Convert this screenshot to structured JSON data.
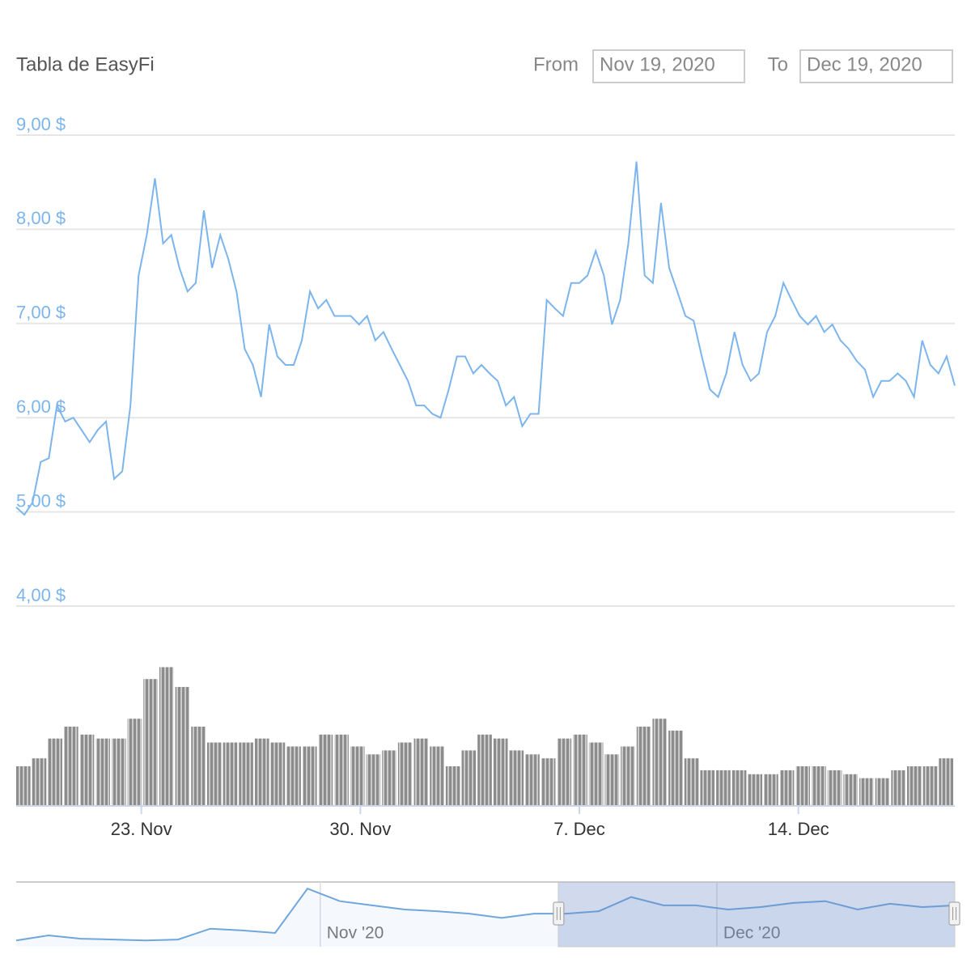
{
  "chart_data": {
    "type": "line",
    "title": "Tabla de EasyFi",
    "range_selector": {
      "from_label": "From",
      "from": "Nov 19, 2020",
      "to_label": "To",
      "to": "Dec 19, 2020"
    },
    "xlim": [
      "2020-11-19",
      "2020-12-19"
    ],
    "xticks": [
      {
        "value": "2020-11-23",
        "label": "23. Nov"
      },
      {
        "value": "2020-11-30",
        "label": "30. Nov"
      },
      {
        "value": "2020-12-07",
        "label": "7. Dec"
      },
      {
        "value": "2020-12-14",
        "label": "14. Dec"
      }
    ],
    "ylim": [
      4,
      9
    ],
    "yticks": [
      {
        "value": 9,
        "label": "9,00 $"
      },
      {
        "value": 8,
        "label": "8,00 $"
      },
      {
        "value": 7,
        "label": "7,00 $"
      },
      {
        "value": 6,
        "label": "6,00 $"
      },
      {
        "value": 5,
        "label": "5,00 $"
      },
      {
        "value": 4,
        "label": "4,00 $"
      }
    ],
    "grid": true,
    "series": [
      {
        "color": "#7cb5ec",
        "values": [
          5.05,
          4.97,
          5.1,
          5.53,
          5.57,
          6.13,
          5.96,
          6.0,
          5.87,
          5.74,
          5.87,
          5.96,
          5.35,
          5.43,
          6.13,
          7.51,
          7.94,
          8.54,
          7.85,
          7.94,
          7.59,
          7.34,
          7.43,
          8.2,
          7.59,
          7.94,
          7.68,
          7.34,
          6.73,
          6.56,
          6.22,
          6.99,
          6.65,
          6.56,
          6.56,
          6.82,
          7.34,
          7.16,
          7.25,
          7.08,
          7.08,
          7.08,
          6.99,
          7.08,
          6.82,
          6.91,
          6.73,
          6.56,
          6.39,
          6.13,
          6.13,
          6.04,
          6.0,
          6.3,
          6.65,
          6.65,
          6.47,
          6.56,
          6.47,
          6.39,
          6.13,
          6.22,
          5.91,
          6.04,
          6.04,
          7.25,
          7.16,
          7.08,
          7.43,
          7.43,
          7.51,
          7.77,
          7.51,
          6.99,
          7.25,
          7.85,
          8.72,
          7.51,
          7.43,
          8.28,
          7.59,
          7.34,
          7.08,
          7.03,
          6.65,
          6.3,
          6.22,
          6.47,
          6.91,
          6.56,
          6.39,
          6.47,
          6.91,
          7.08,
          7.43,
          7.25,
          7.08,
          6.99,
          7.08,
          6.91,
          6.99,
          6.82,
          6.73,
          6.6,
          6.51,
          6.22,
          6.39,
          6.39,
          6.47,
          6.39,
          6.22,
          6.82,
          6.56,
          6.47,
          6.65,
          6.34
        ]
      }
    ],
    "volume": {
      "color": "#8c8c8c",
      "ylim": [
        0,
        200
      ],
      "values": [
        50,
        60,
        85,
        100,
        90,
        85,
        85,
        110,
        160,
        175,
        150,
        100,
        80,
        80,
        80,
        85,
        80,
        75,
        75,
        90,
        90,
        75,
        65,
        70,
        80,
        85,
        75,
        50,
        70,
        90,
        85,
        70,
        65,
        60,
        85,
        90,
        80,
        65,
        75,
        100,
        110,
        95,
        60,
        45,
        45,
        45,
        40,
        40,
        45,
        50,
        50,
        45,
        40,
        35,
        35,
        45,
        50,
        50,
        60
      ]
    },
    "navigator": {
      "color": "#6fa6dc",
      "xlim": [
        "2020-10-09",
        "2020-12-19"
      ],
      "xticks": [
        {
          "value": "2020-11-01",
          "label": "Nov '20"
        },
        {
          "value": "2020-12-01",
          "label": "Dec '20"
        }
      ],
      "ylim": [
        4.3,
        9.0
      ],
      "range": [
        "2020-11-19",
        "2020-12-19"
      ],
      "values": [
        4.76,
        5.12,
        4.88,
        4.82,
        4.76,
        4.82,
        5.61,
        5.48,
        5.3,
        8.52,
        7.61,
        7.3,
        7.0,
        6.88,
        6.7,
        6.39,
        6.7,
        6.7,
        6.88,
        7.91,
        7.3,
        7.3,
        7.0,
        7.18,
        7.48,
        7.61,
        7.0,
        7.42,
        7.18,
        7.3
      ]
    }
  }
}
